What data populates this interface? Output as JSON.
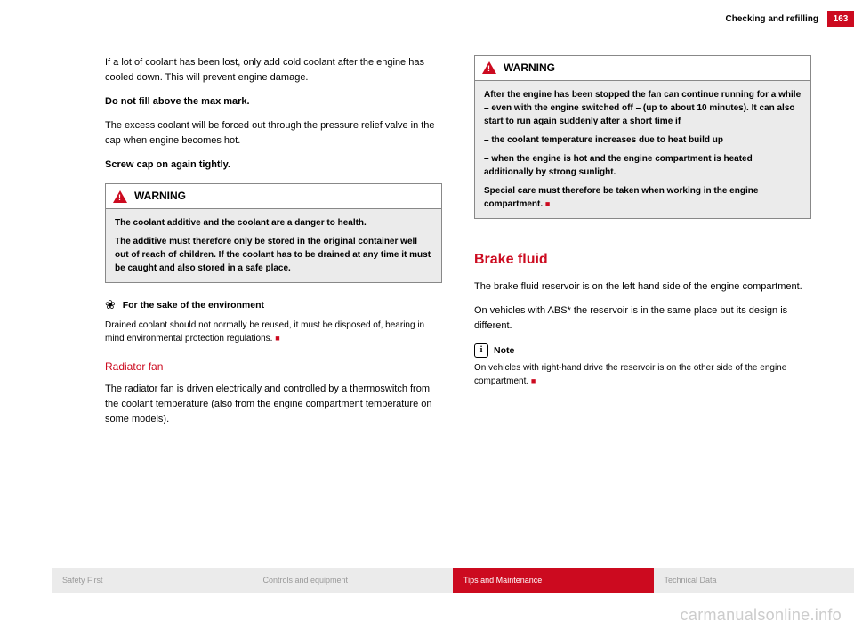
{
  "header": {
    "section": "Checking and refilling",
    "page": "163"
  },
  "left": {
    "p1": "If a lot of coolant has been lost, only add cold coolant after the engine has cooled down. This will prevent engine damage.",
    "p2": "Do not fill above the max mark.",
    "p3": "The excess coolant will be forced out through the pressure relief valve in the cap when engine becomes hot.",
    "p4": "Screw cap on again tightly.",
    "warn_label": "WARNING",
    "warn_b1": "The coolant additive and the coolant are a danger to health.",
    "warn_b2": "The additive must therefore only be stored in the original container well out of reach of children. If the coolant has to be drained at any time it must be caught and also stored in a safe place.",
    "env_label": "For the sake of the environment",
    "env_text_a": "Drained coolant should not normally be reused, it must be disposed of, bearing in mind environmental protection regulations. ",
    "sub1": "Radiator fan",
    "p5": "The radiator fan is driven electrically and controlled by a thermoswitch from the coolant temperature (also from the engine compartment temperature on some models)."
  },
  "right": {
    "warn_label": "WARNING",
    "w1": "After the engine has been stopped the fan can continue running for a while – even with the engine switched off – (up to about 10 minutes). It can also start to run again suddenly after a short time if",
    "w2": "–  the coolant temperature increases due to heat build up",
    "w3": "–  when the engine is hot and the engine compartment is heated additionally by strong sunlight.",
    "w4_a": "Special care must therefore be taken when working in the engine compartment. ",
    "bighead": "Brake fluid",
    "p1": "The brake fluid reservoir is on the left hand side of the engine compartment.",
    "p2": "On vehicles with ABS* the reservoir is in the same place but its design is different.",
    "note_label": "Note",
    "note_text_a": "On vehicles with right-hand drive the reservoir is on the other side of the engine compartment. "
  },
  "footer": {
    "a": "Safety First",
    "b": "Controls and equipment",
    "c": "Tips and Maintenance",
    "d": "Technical Data"
  },
  "watermark": "carmanualsonline.info",
  "colors": {
    "accent": "#cc0a1f"
  }
}
